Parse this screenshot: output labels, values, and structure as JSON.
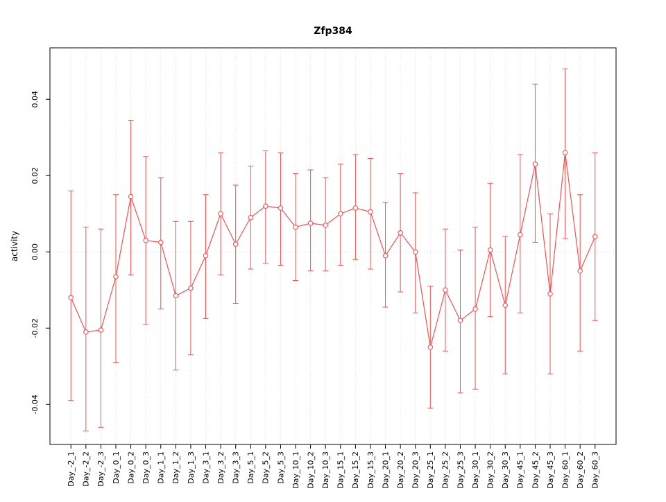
{
  "page": {
    "background": "#ffffff"
  },
  "chart_data": {
    "type": "line",
    "title": "Zfp384",
    "xlabel": "",
    "ylabel": "activity",
    "legend": "none",
    "grid": "dotted vertical gridline at each category; dotted horizontal line at y=0",
    "categories": [
      "Day_-2_1",
      "Day_-2_2",
      "Day_-2_3",
      "Day_0_1",
      "Day_0_2",
      "Day_0_3",
      "Day_1_1",
      "Day_1_2",
      "Day_1_3",
      "Day_3_1",
      "Day_3_2",
      "Day_3_3",
      "Day_5_1",
      "Day_5_2",
      "Day_5_3",
      "Day_10_1",
      "Day_10_2",
      "Day_10_3",
      "Day_15_1",
      "Day_15_2",
      "Day_15_3",
      "Day_20_1",
      "Day_20_2",
      "Day_20_3",
      "Day_25_1",
      "Day_25_2",
      "Day_25_3",
      "Day_30_1",
      "Day_30_2",
      "Day_30_3",
      "Day_45_1",
      "Day_45_2",
      "Day_45_3",
      "Day_60_1",
      "Day_60_2",
      "Day_60_3"
    ],
    "values": [
      -0.012,
      -0.021,
      -0.0205,
      -0.0065,
      0.0145,
      0.003,
      0.0025,
      -0.0115,
      -0.0095,
      -0.001,
      0.01,
      0.002,
      0.009,
      0.012,
      0.0115,
      0.0065,
      0.0075,
      0.007,
      0.01,
      0.0115,
      0.0105,
      -0.001,
      0.005,
      0.0,
      -0.025,
      -0.01,
      -0.018,
      -0.015,
      0.0005,
      -0.014,
      0.0045,
      0.023,
      -0.011,
      0.026,
      -0.005,
      0.004
    ],
    "error_upper": [
      0.016,
      0.0065,
      0.006,
      0.015,
      0.0345,
      0.025,
      0.0195,
      0.008,
      0.008,
      0.015,
      0.026,
      0.0175,
      0.0225,
      0.0265,
      0.026,
      0.0205,
      0.0215,
      0.0195,
      0.023,
      0.0255,
      0.0245,
      0.013,
      0.0205,
      0.0155,
      -0.009,
      0.006,
      0.0005,
      0.0065,
      0.018,
      0.004,
      0.0255,
      0.044,
      0.01,
      0.048,
      0.015,
      0.026
    ],
    "error_lower": [
      -0.039,
      -0.047,
      -0.046,
      -0.029,
      -0.006,
      -0.019,
      -0.015,
      -0.031,
      -0.027,
      -0.0175,
      -0.006,
      -0.0135,
      -0.0045,
      -0.003,
      -0.0035,
      -0.0075,
      -0.005,
      -0.005,
      -0.0035,
      -0.002,
      -0.0045,
      -0.0145,
      -0.0105,
      -0.016,
      -0.041,
      -0.026,
      -0.037,
      -0.036,
      -0.017,
      -0.032,
      -0.016,
      0.0025,
      -0.032,
      0.0035,
      -0.026,
      -0.018
    ],
    "yticks": {
      "values": [
        -0.04,
        -0.02,
        0.0,
        0.02,
        0.04
      ],
      "labels": [
        "-0.04",
        "-0.02",
        "0.00",
        "0.02",
        "0.04"
      ]
    },
    "ylim": [
      -0.0505,
      0.0535
    ],
    "colors": {
      "series": "#ef5350",
      "grid": "#d8d8d8",
      "zero_line": "#d8d8d8",
      "axis": "#000000",
      "background": "#ffffff"
    }
  }
}
